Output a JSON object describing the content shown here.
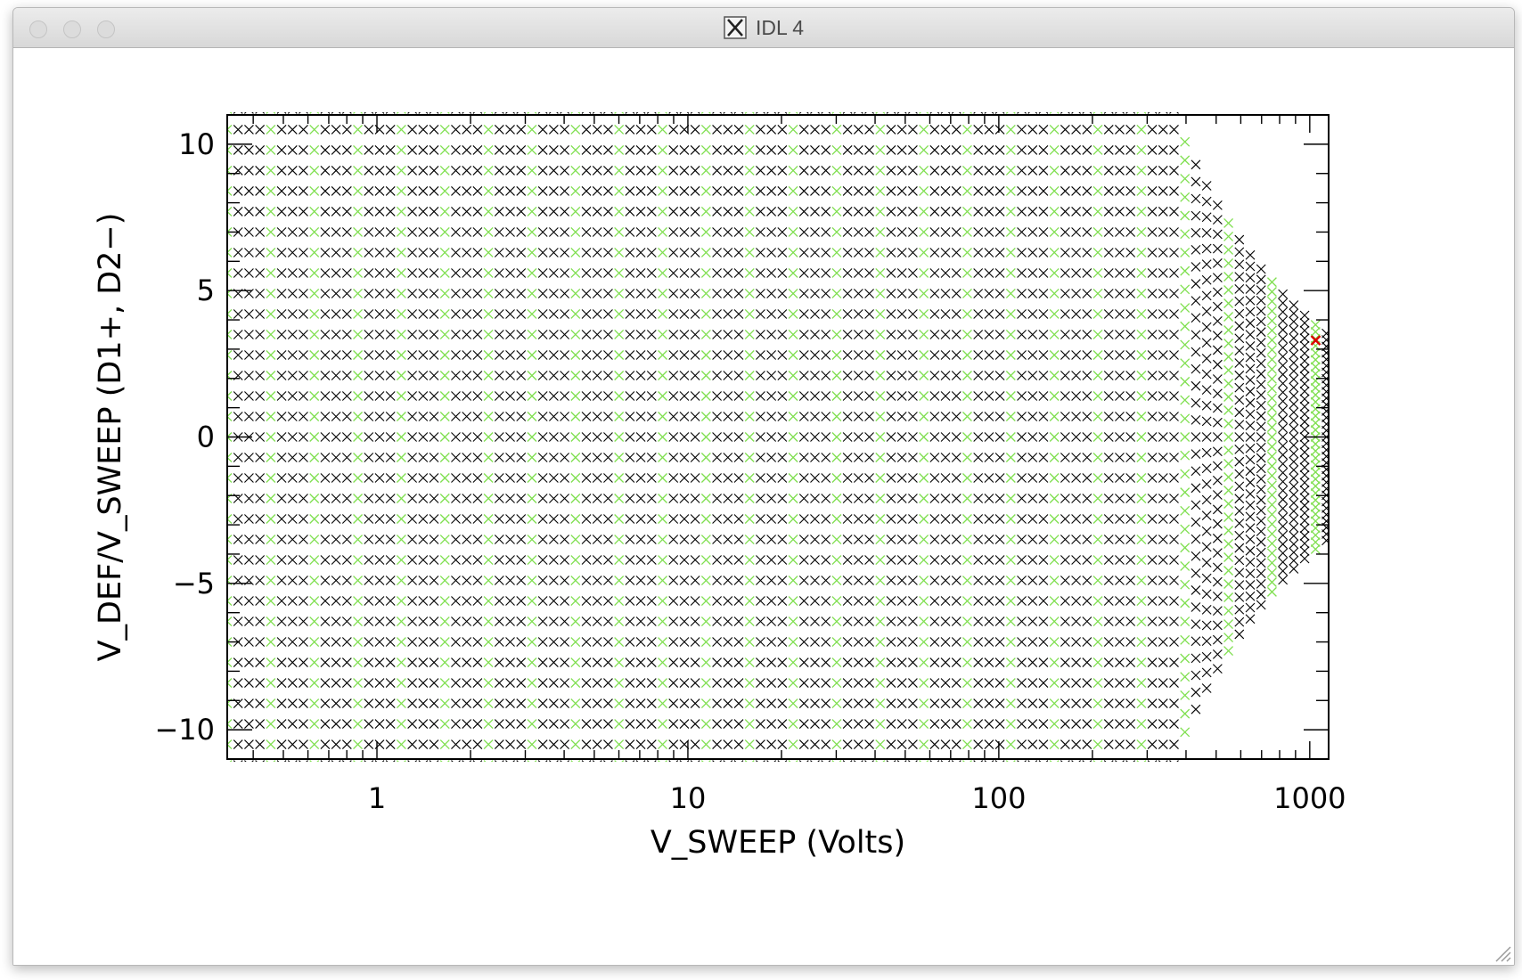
{
  "window": {
    "title": "IDL 4",
    "title_icon": "x11-icon"
  },
  "chart_data": {
    "type": "scatter",
    "xscale": "log",
    "xlim": [
      0.33,
      1150
    ],
    "ylim": [
      -11,
      11
    ],
    "xlabel": "V_SWEEP (Volts)",
    "ylabel": "V_DEF/V_SWEEP (D1+, D2−)",
    "x_ticks": [
      1,
      10,
      100,
      1000
    ],
    "x_tick_labels": [
      "1",
      "10",
      "100",
      "1000"
    ],
    "y_ticks": [
      -10,
      -5,
      0,
      5,
      10
    ],
    "y_tick_labels": [
      "−10",
      "−5",
      "0",
      "5",
      "10"
    ],
    "grid": false,
    "legend": "none",
    "marker": "x",
    "colors": {
      "table": "#000000",
      "highlight_columns": "#7fdf4f",
      "selected": "#dd0000"
    },
    "description_of_series": [
      {
        "name": "",
        "color": "#000000",
        "pattern": "sweep x deflection table: x from 0.33 to ~390 V with deflection ratio -11 to 11; beyond ~390 V deflection range |y| <= 4000/x"
      },
      {
        "name": "",
        "color": "#7fdf4f",
        "pattern": "subset of table columns"
      },
      {
        "name": "",
        "color": "#dd0000",
        "points": [
          [
            1045,
            3.3
          ]
        ]
      }
    ],
    "generation": {
      "x_min": 0.33,
      "x_log_step": 0.035,
      "y_rows": 33,
      "y_step": 0.7,
      "y_max": 11.2,
      "knee_x": 390,
      "y_limit_const": 4000,
      "green_every": 4,
      "selected_point": [
        1045,
        3.3
      ]
    }
  }
}
